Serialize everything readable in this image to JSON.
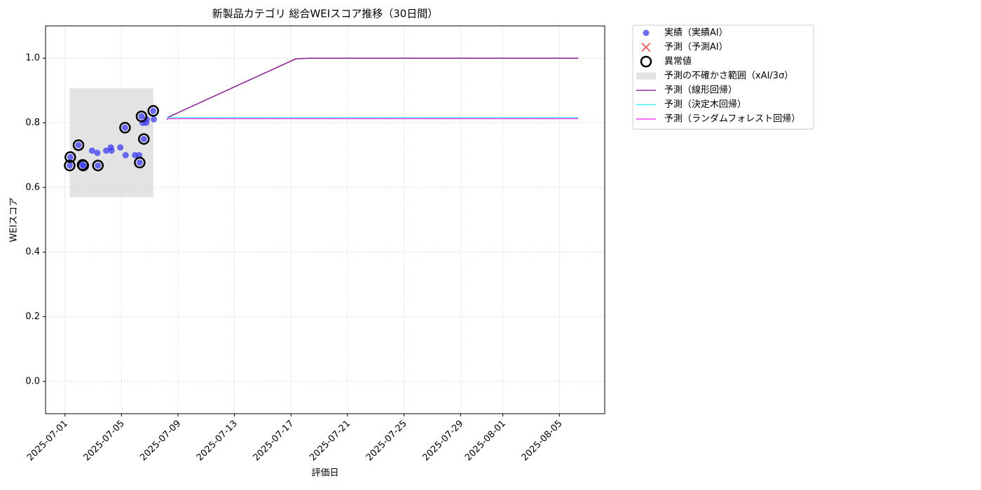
{
  "chart_data": {
    "type": "time-series",
    "title": "新製品カテゴリ 総合WEIスコア推移（30日間）",
    "x_label": "評価日",
    "y_label": "WEIスコア",
    "xlim": [
      "2025-06-29T15:00",
      "2025-08-08T05:00"
    ],
    "xticks": [
      "2025-07-01",
      "2025-07-05",
      "2025-07-09",
      "2025-07-13",
      "2025-07-17",
      "2025-07-21",
      "2025-07-25",
      "2025-07-29",
      "2025-08-01",
      "2025-08-05"
    ],
    "ylim": [
      -0.1,
      1.1
    ],
    "yticks": [
      {
        "value": 0,
        "label": "0.0"
      },
      0.2,
      0.4,
      0.6,
      0.8,
      {
        "value": 1,
        "label": "1.0"
      }
    ],
    "grid": true,
    "legend": "outside upper right",
    "series": [
      {
        "name": "実績（実績AI）",
        "kind": "scatter",
        "color": "#3c3cf2",
        "x": [
          "2025-07-01T08:00",
          "2025-07-01T09:00",
          "2025-07-01T23:00",
          "2025-07-02T06:00",
          "2025-07-02T07:00",
          "2025-07-02T22:00",
          "2025-07-03T07:00",
          "2025-07-03T08:00",
          "2025-07-03T22:00",
          "2025-07-04T06:00",
          "2025-07-04T07:00",
          "2025-07-04T22:00",
          "2025-07-05T06:00",
          "2025-07-05T07:00",
          "2025-07-05T23:00",
          "2025-07-06T06:00",
          "2025-07-06T07:00",
          "2025-07-06T10:00",
          "2025-07-06T12:00",
          "2025-07-06T14:00",
          "2025-07-06T18:00",
          "2025-07-06T19:00",
          "2025-07-07T06:00",
          "2025-07-07T07:00"
        ],
        "values": [
          0.668,
          0.694,
          0.731,
          0.67,
          0.668,
          0.714,
          0.707,
          0.668,
          0.714,
          0.724,
          0.714,
          0.724,
          0.785,
          0.7,
          0.7,
          0.7,
          0.677,
          0.82,
          0.8,
          0.75,
          0.8,
          0.811,
          0.837,
          0.811
        ]
      },
      {
        "name": "予測（予測AI）",
        "kind": "cross",
        "color": "#e8302f",
        "x": [],
        "values": []
      },
      {
        "name": "異常値",
        "kind": "ring",
        "color": "#000000",
        "x": [
          "2025-07-01T08:00",
          "2025-07-01T09:00",
          "2025-07-01T23:00",
          "2025-07-02T06:00",
          "2025-07-02T07:00",
          "2025-07-03T08:00",
          "2025-07-05T06:00",
          "2025-07-06T07:00",
          "2025-07-06T10:00",
          "2025-07-06T14:00",
          "2025-07-07T06:00"
        ],
        "values": [
          0.668,
          0.694,
          0.731,
          0.67,
          0.668,
          0.668,
          0.785,
          0.677,
          0.82,
          0.75,
          0.837
        ]
      },
      {
        "name": "予測の不確かさ範囲（xAI/3σ）",
        "kind": "band",
        "color": "#d9d9d9",
        "x": [
          "2025-07-01T08:00",
          "2025-07-07T06:00"
        ],
        "lower": 0.57,
        "upper": 0.907
      },
      {
        "name": "予測（線形回帰）",
        "kind": "line",
        "color": "#8e2a96",
        "x": [
          "2025-07-08T05:00",
          "2025-07-08T08:00",
          "2025-07-17T08:00",
          "2025-07-18T08:00",
          "2025-08-06T08:00"
        ],
        "values": [
          0.81,
          0.818,
          0.998,
          1.0,
          1.0
        ]
      },
      {
        "name": "予測（決定木回帰）",
        "kind": "line",
        "color": "#3ff2f2",
        "x": [
          "2025-07-08T05:00",
          "2025-08-06T08:00"
        ],
        "values": [
          0.816,
          0.816
        ]
      },
      {
        "name": "予測（ランダムフォレスト回帰）",
        "kind": "line",
        "color": "#f23ff2",
        "x": [
          "2025-07-08T05:00",
          "2025-08-06T08:00"
        ],
        "values": [
          0.813,
          0.813
        ]
      }
    ]
  }
}
